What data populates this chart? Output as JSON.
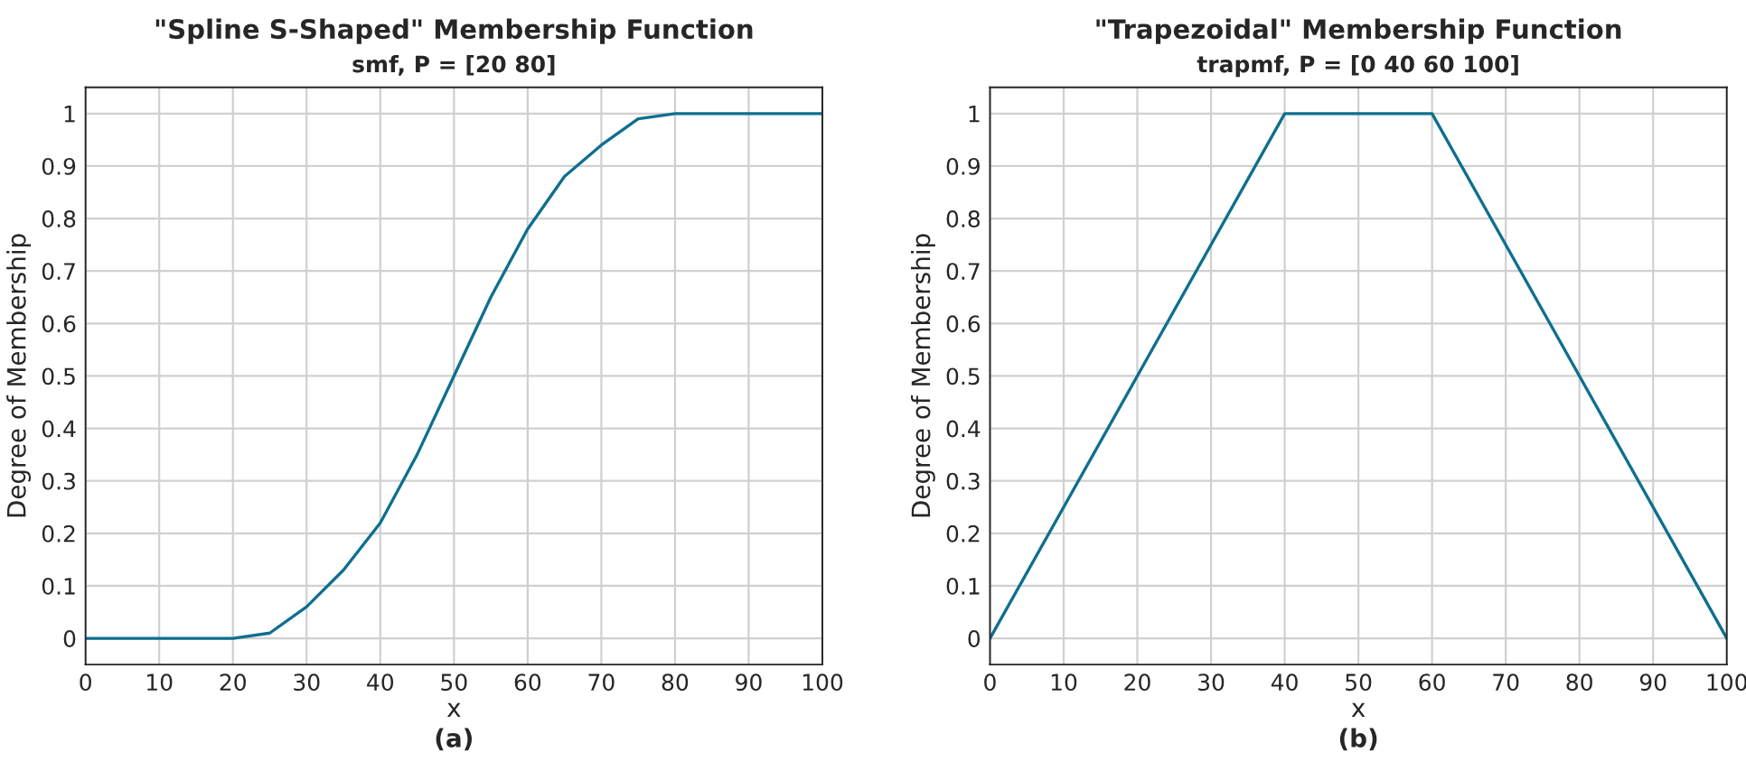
{
  "chart_data": [
    {
      "type": "line",
      "title": "\"Spline S-Shaped\" Membership Function",
      "subtitle": "smf, P = [20 80]",
      "xlabel": "x",
      "ylabel": "Degree of Membership",
      "annotations": [
        "(a)"
      ],
      "x": [
        0,
        10,
        20,
        25,
        30,
        35,
        40,
        45,
        50,
        55,
        60,
        65,
        70,
        75,
        80,
        90,
        100
      ],
      "series": [
        {
          "color": "#0e6f8f",
          "values": [
            0,
            0,
            0,
            0.01,
            0.06,
            0.13,
            0.22,
            0.35,
            0.5,
            0.65,
            0.78,
            0.88,
            0.94,
            0.99,
            1,
            1,
            1
          ]
        }
      ],
      "xlim": [
        0,
        100
      ],
      "xticks": [
        0,
        10,
        20,
        30,
        40,
        50,
        60,
        70,
        80,
        90,
        100
      ],
      "ylim": [
        -0.05,
        1.05
      ],
      "yticks": [
        0,
        0.1,
        0.2,
        0.3,
        0.4,
        0.5,
        0.6,
        0.7,
        0.8,
        0.9,
        1
      ],
      "grid": true,
      "line_style": "solid"
    },
    {
      "type": "line",
      "title": "\"Trapezoidal\" Membership Function",
      "subtitle": "trapmf, P = [0 40 60 100]",
      "xlabel": "x",
      "ylabel": "Degree of Membership",
      "annotations": [
        "(b)"
      ],
      "x": [
        0,
        40,
        60,
        100
      ],
      "series": [
        {
          "color": "#0e6f8f",
          "values": [
            0,
            1,
            1,
            0
          ]
        }
      ],
      "xlim": [
        0,
        100
      ],
      "xticks": [
        0,
        10,
        20,
        30,
        40,
        50,
        60,
        70,
        80,
        90,
        100
      ],
      "ylim": [
        -0.05,
        1.05
      ],
      "yticks": [
        0,
        0.1,
        0.2,
        0.3,
        0.4,
        0.5,
        0.6,
        0.7,
        0.8,
        0.9,
        1
      ],
      "grid": true,
      "line_style": "solid"
    }
  ]
}
